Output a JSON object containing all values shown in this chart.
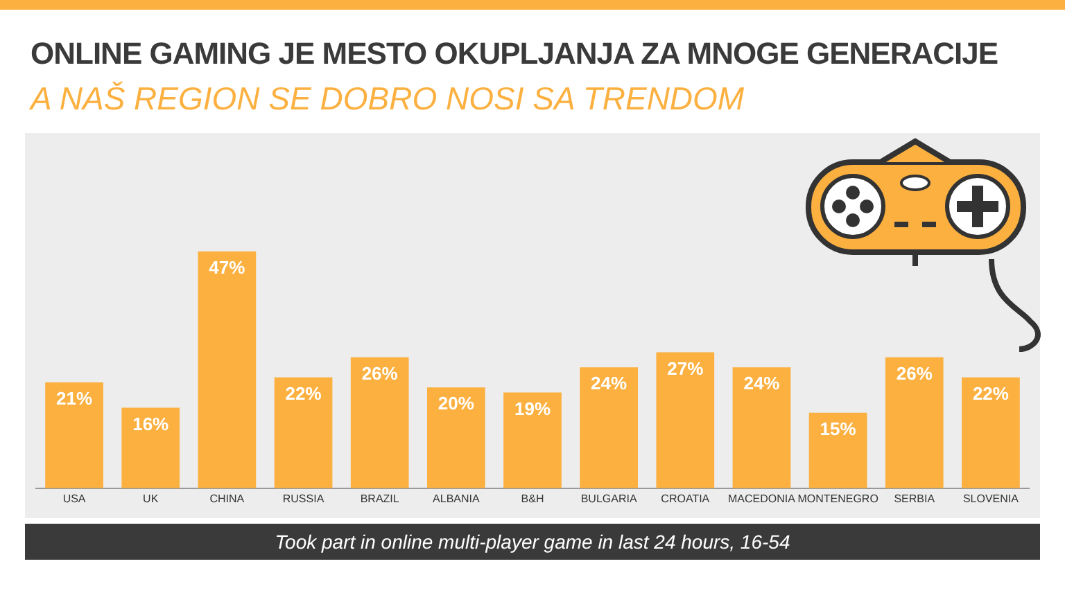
{
  "chart_data": {
    "type": "bar",
    "title": "ONLINE GAMING JE MESTO OKUPLJANJA ZA MNOGE GENERACIJE",
    "subtitle": "A NAŠ REGION SE DOBRO NOSI SA TRENDOM",
    "categories": [
      "USA",
      "UK",
      "CHINA",
      "RUSSIA",
      "BRAZIL",
      "ALBANIA",
      "B&H",
      "BULGARIA",
      "CROATIA",
      "MACEDONIA",
      "MONTENEGRO",
      "SERBIA",
      "SLOVENIA"
    ],
    "values": [
      21,
      16,
      47,
      22,
      26,
      20,
      19,
      24,
      27,
      24,
      15,
      26,
      22
    ],
    "value_labels": [
      "21%",
      "16%",
      "47%",
      "22%",
      "26%",
      "20%",
      "19%",
      "24%",
      "27%",
      "24%",
      "15%",
      "26%",
      "22%"
    ],
    "color": "#fbb040",
    "grid": false,
    "legend": false,
    "annotations": [
      "Took part in online multi-player game in last 24 hours, 16-54"
    ]
  }
}
